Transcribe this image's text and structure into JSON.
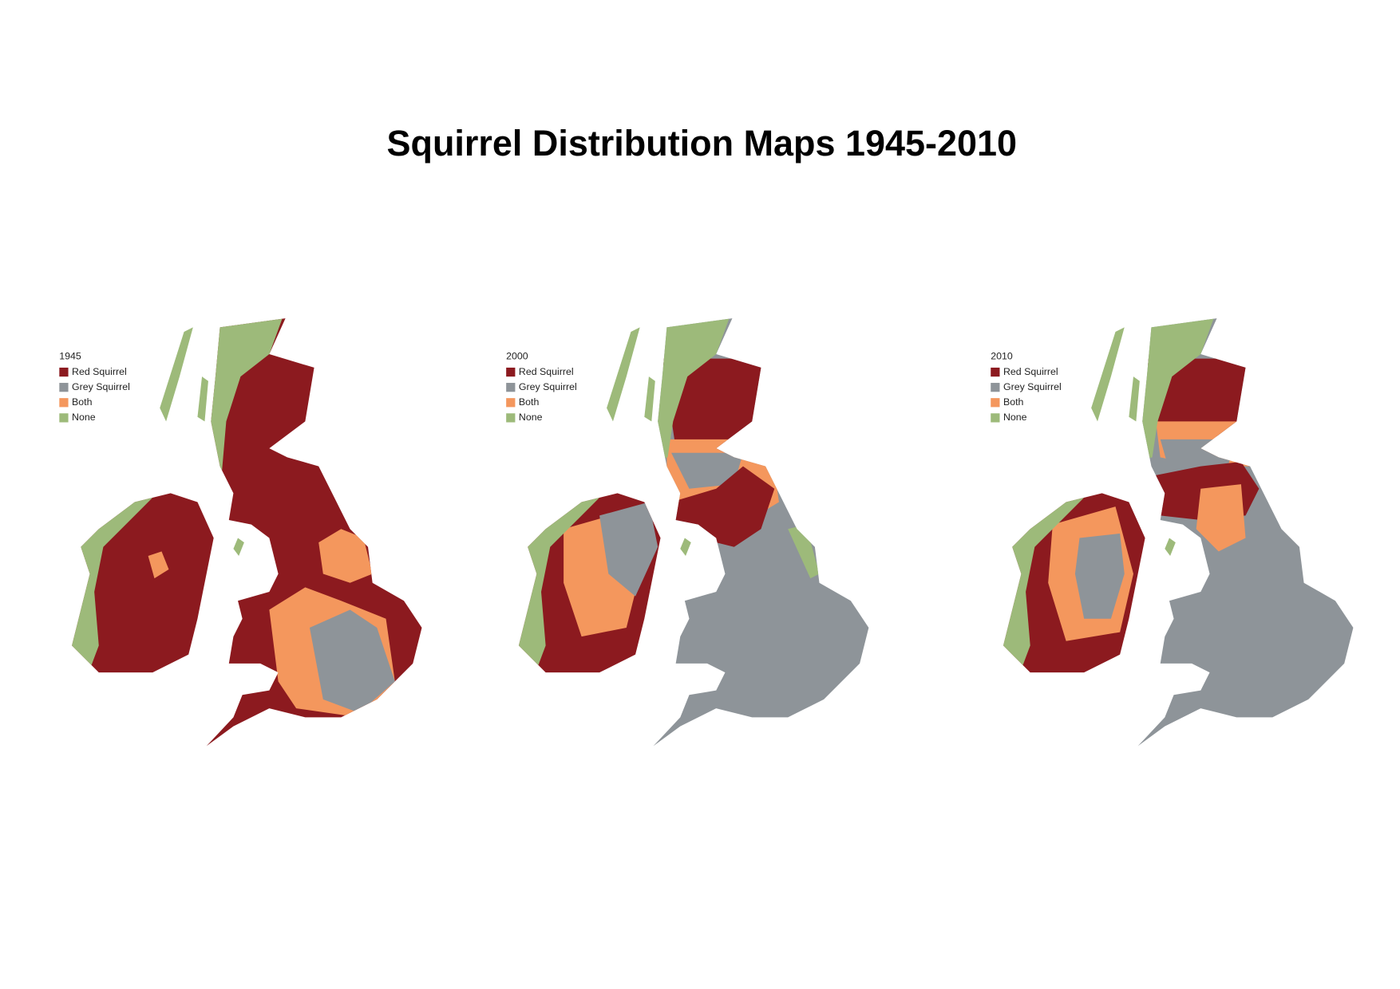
{
  "title": "Squirrel Distribution Maps 1945-2010",
  "maps": [
    {
      "year": "1945",
      "legend": [
        {
          "label": "Red Squirrel",
          "color": "#8c1a1f"
        },
        {
          "label": "Grey Squirrel",
          "color": "#8e9499"
        },
        {
          "label": "Both",
          "color": "#f4975d"
        },
        {
          "label": "None",
          "color": "#9dba7a"
        }
      ]
    },
    {
      "year": "2000",
      "legend": [
        {
          "label": "Red Squirrel",
          "color": "#8c1a1f"
        },
        {
          "label": "Grey Squirrel",
          "color": "#8e9499"
        },
        {
          "label": "Both",
          "color": "#f4975d"
        },
        {
          "label": "None",
          "color": "#9dba7a"
        }
      ]
    },
    {
      "year": "2010",
      "legend": [
        {
          "label": "Red Squirrel",
          "color": "#8c1a1f"
        },
        {
          "label": "Grey Squirrel",
          "color": "#8e9499"
        },
        {
          "label": "Both",
          "color": "#f4975d"
        },
        {
          "label": "None",
          "color": "#9dba7a"
        }
      ]
    }
  ]
}
